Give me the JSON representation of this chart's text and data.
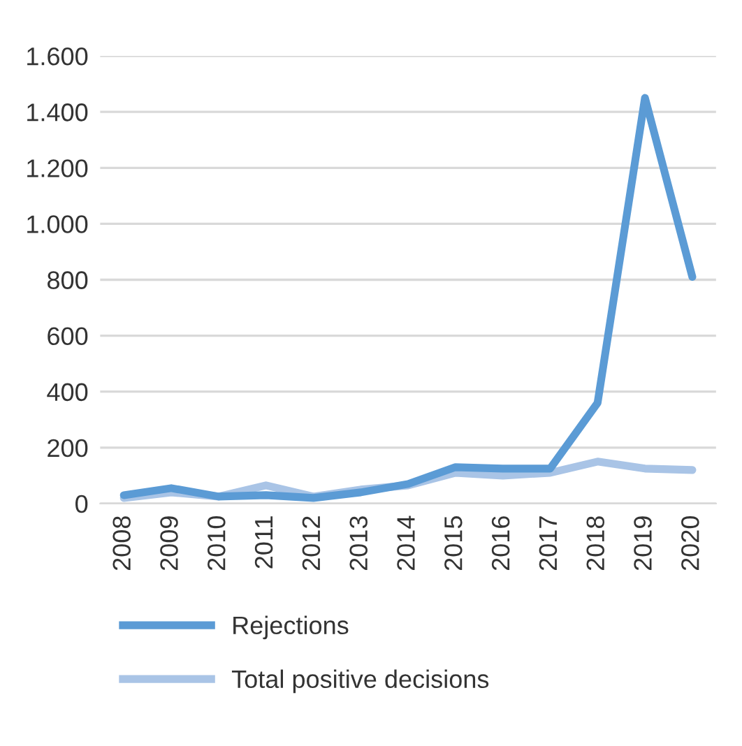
{
  "chart_data": {
    "type": "line",
    "categories": [
      "2008",
      "2009",
      "2010",
      "2011",
      "2012",
      "2013",
      "2014",
      "2015",
      "2016",
      "2017",
      "2018",
      "2019",
      "2020"
    ],
    "series": [
      {
        "name": "Rejections",
        "color": "#5b9bd5",
        "values": [
          30,
          55,
          25,
          30,
          20,
          40,
          70,
          130,
          125,
          125,
          360,
          1450,
          810
        ]
      },
      {
        "name": "Total positive decisions",
        "color": "#a9c4e6",
        "values": [
          20,
          40,
          25,
          65,
          25,
          50,
          65,
          110,
          100,
          110,
          150,
          125,
          120
        ]
      }
    ],
    "ylim": [
      0,
      1600
    ],
    "yticks": [
      0,
      200,
      400,
      600,
      800,
      {
        "value": 1000,
        "label": "1.000"
      },
      {
        "value": 1200,
        "label": "1.200"
      },
      {
        "value": 1400,
        "label": "1.400"
      },
      {
        "value": 1600,
        "label": "1.600"
      }
    ],
    "grid": "y",
    "legend": "bottom",
    "marker": "none",
    "line_style": "solid"
  }
}
